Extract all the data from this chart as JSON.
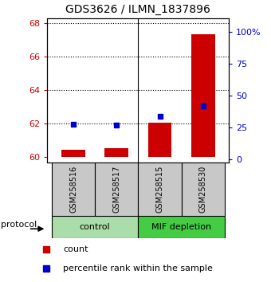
{
  "title": "GDS3626 / ILMN_1837896",
  "samples": [
    "GSM258516",
    "GSM258517",
    "GSM258515",
    "GSM258530"
  ],
  "red_values": [
    60.42,
    60.52,
    62.05,
    67.35
  ],
  "blue_values": [
    61.98,
    61.93,
    62.42,
    63.08
  ],
  "red_base": 60.0,
  "ylim_left": [
    59.7,
    68.3
  ],
  "ylim_right": [
    -2.2,
    110.7
  ],
  "yticks_left": [
    60,
    62,
    64,
    66,
    68
  ],
  "yticks_right": [
    0,
    25,
    50,
    75,
    100
  ],
  "ytick_labels_right": [
    "0",
    "25",
    "50",
    "75",
    "100%"
  ],
  "groups": [
    {
      "label": "control",
      "samples": [
        0,
        1
      ],
      "color": "#aaddaa"
    },
    {
      "label": "MIF depletion",
      "samples": [
        2,
        3
      ],
      "color": "#44cc44"
    }
  ],
  "bar_width": 0.55,
  "red_color": "#cc0000",
  "blue_color": "#0000cc",
  "bg_label": "#c8c8c8",
  "protocol_label": "protocol",
  "legend_count": "count",
  "legend_percentile": "percentile rank within the sample",
  "title_fontsize": 10
}
